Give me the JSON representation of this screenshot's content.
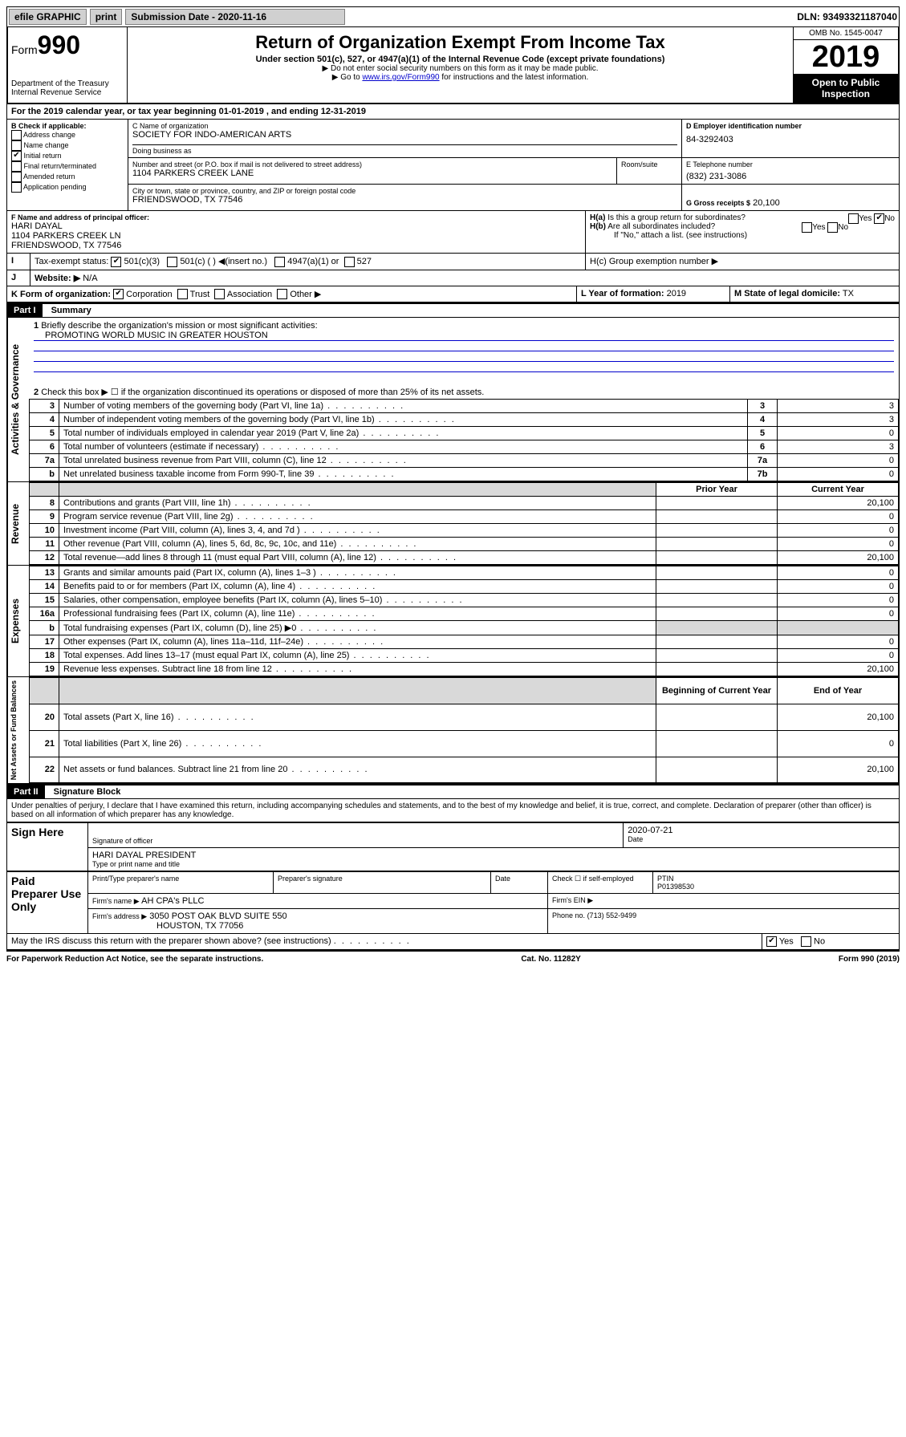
{
  "top_bar": {
    "efile": "efile GRAPHIC",
    "print": "print",
    "sub_label": "Submission Date - 2020-11-16",
    "dln": "DLN: 93493321187040"
  },
  "header": {
    "form_prefix": "Form",
    "form_number": "990",
    "dept1": "Department of the Treasury",
    "dept2": "Internal Revenue Service",
    "title": "Return of Organization Exempt From Income Tax",
    "subtitle": "Under section 501(c), 527, or 4947(a)(1) of the Internal Revenue Code (except private foundations)",
    "note1": "▶ Do not enter social security numbers on this form as it may be made public.",
    "note2_pre": "▶ Go to ",
    "note2_link": "www.irs.gov/Form990",
    "note2_post": " for instructions and the latest information.",
    "omb": "OMB No. 1545-0047",
    "year": "2019",
    "inspect1": "Open to Public",
    "inspect2": "Inspection"
  },
  "line_a": "For the 2019 calendar year, or tax year beginning 01-01-2019   , and ending 12-31-2019",
  "box_b": {
    "label": "B Check if applicable:",
    "items": [
      "Address change",
      "Name change",
      "Initial return",
      "Final return/terminated",
      "Amended return",
      "Application pending"
    ],
    "checked_idx": 2
  },
  "box_c": {
    "lbl_name": "C Name of organization",
    "name": "SOCIETY FOR INDO-AMERICAN ARTS",
    "dba_lbl": "Doing business as",
    "addr_lbl": "Number and street (or P.O. box if mail is not delivered to street address)",
    "room_lbl": "Room/suite",
    "addr": "1104 PARKERS CREEK LANE",
    "city_lbl": "City or town, state or province, country, and ZIP or foreign postal code",
    "city": "FRIENDSWOOD, TX  77546"
  },
  "box_d": {
    "lbl": "D Employer identification number",
    "val": "84-3292403"
  },
  "box_e": {
    "lbl": "E Telephone number",
    "val": "(832) 231-3086"
  },
  "box_g": {
    "lbl": "G Gross receipts $",
    "val": "20,100"
  },
  "box_f": {
    "lbl": "F  Name and address of principal officer:",
    "name": "HARI DAYAL",
    "addr1": "1104 PARKERS CREEK LN",
    "addr2": "FRIENDSWOOD, TX  77546"
  },
  "box_h": {
    "a": "H(a)  Is this a group return for subordinates?",
    "b": "H(b)  Are all subordinates included?",
    "note": "If \"No,\" attach a list. (see instructions)",
    "c": "H(c)  Group exemption number ▶",
    "yes": "Yes",
    "no": "No"
  },
  "box_i": {
    "lbl": "Tax-exempt status:",
    "o1": "501(c)(3)",
    "o2": "501(c) (  ) ◀(insert no.)",
    "o3": "4947(a)(1) or",
    "o4": "527"
  },
  "box_j": {
    "lbl": "Website: ▶",
    "val": "N/A"
  },
  "box_k": {
    "lbl": "K Form of organization:",
    "o1": "Corporation",
    "o2": "Trust",
    "o3": "Association",
    "o4": "Other ▶"
  },
  "box_l": {
    "lbl": "L Year of formation:",
    "val": "2019"
  },
  "box_m": {
    "lbl": "M State of legal domicile:",
    "val": "TX"
  },
  "part1": {
    "hdr": "Part I",
    "title": "Summary",
    "l1_lbl": "Briefly describe the organization's mission or most significant activities:",
    "l1_val": "PROMOTING WORLD MUSIC IN GREATER HOUSTON",
    "l2": "Check this box ▶ ☐  if the organization discontinued its operations or disposed of more than 25% of its net assets.",
    "rows_ag": [
      {
        "n": "3",
        "d": "Number of voting members of the governing body (Part VI, line 1a)",
        "b": "3",
        "v": "3"
      },
      {
        "n": "4",
        "d": "Number of independent voting members of the governing body (Part VI, line 1b)",
        "b": "4",
        "v": "3"
      },
      {
        "n": "5",
        "d": "Total number of individuals employed in calendar year 2019 (Part V, line 2a)",
        "b": "5",
        "v": "0"
      },
      {
        "n": "6",
        "d": "Total number of volunteers (estimate if necessary)",
        "b": "6",
        "v": "3"
      },
      {
        "n": "7a",
        "d": "Total unrelated business revenue from Part VIII, column (C), line 12",
        "b": "7a",
        "v": "0"
      },
      {
        "n": "b",
        "d": "Net unrelated business taxable income from Form 990-T, line 39",
        "b": "7b",
        "v": "0"
      }
    ],
    "col_prior": "Prior Year",
    "col_curr": "Current Year",
    "rows_rev": [
      {
        "n": "8",
        "d": "Contributions and grants (Part VIII, line 1h)",
        "p": "",
        "c": "20,100"
      },
      {
        "n": "9",
        "d": "Program service revenue (Part VIII, line 2g)",
        "p": "",
        "c": "0"
      },
      {
        "n": "10",
        "d": "Investment income (Part VIII, column (A), lines 3, 4, and 7d )",
        "p": "",
        "c": "0"
      },
      {
        "n": "11",
        "d": "Other revenue (Part VIII, column (A), lines 5, 6d, 8c, 9c, 10c, and 11e)",
        "p": "",
        "c": "0"
      },
      {
        "n": "12",
        "d": "Total revenue—add lines 8 through 11 (must equal Part VIII, column (A), line 12)",
        "p": "",
        "c": "20,100"
      }
    ],
    "rows_exp": [
      {
        "n": "13",
        "d": "Grants and similar amounts paid (Part IX, column (A), lines 1–3 )",
        "p": "",
        "c": "0"
      },
      {
        "n": "14",
        "d": "Benefits paid to or for members (Part IX, column (A), line 4)",
        "p": "",
        "c": "0"
      },
      {
        "n": "15",
        "d": "Salaries, other compensation, employee benefits (Part IX, column (A), lines 5–10)",
        "p": "",
        "c": "0"
      },
      {
        "n": "16a",
        "d": "Professional fundraising fees (Part IX, column (A), line 11e)",
        "p": "",
        "c": "0"
      },
      {
        "n": "b",
        "d": "Total fundraising expenses (Part IX, column (D), line 25) ▶0",
        "p": "shade",
        "c": "shade"
      },
      {
        "n": "17",
        "d": "Other expenses (Part IX, column (A), lines 11a–11d, 11f–24e)",
        "p": "",
        "c": "0"
      },
      {
        "n": "18",
        "d": "Total expenses. Add lines 13–17 (must equal Part IX, column (A), line 25)",
        "p": "",
        "c": "0"
      },
      {
        "n": "19",
        "d": "Revenue less expenses. Subtract line 18 from line 12",
        "p": "",
        "c": "20,100"
      }
    ],
    "col_boy": "Beginning of Current Year",
    "col_eoy": "End of Year",
    "rows_na": [
      {
        "n": "20",
        "d": "Total assets (Part X, line 16)",
        "p": "",
        "c": "20,100"
      },
      {
        "n": "21",
        "d": "Total liabilities (Part X, line 26)",
        "p": "",
        "c": "0"
      },
      {
        "n": "22",
        "d": "Net assets or fund balances. Subtract line 21 from line 20",
        "p": "",
        "c": "20,100"
      }
    ],
    "vert_ag": "Activities & Governance",
    "vert_rev": "Revenue",
    "vert_exp": "Expenses",
    "vert_na": "Net Assets or Fund Balances"
  },
  "part2": {
    "hdr": "Part II",
    "title": "Signature Block",
    "perjury": "Under penalties of perjury, I declare that I have examined this return, including accompanying schedules and statements, and to the best of my knowledge and belief, it is true, correct, and complete. Declaration of preparer (other than officer) is based on all information of which preparer has any knowledge.",
    "sign_here": "Sign Here",
    "sig_of_officer": "Signature of officer",
    "date": "Date",
    "date_val": "2020-07-21",
    "officer_name": "HARI DAYAL  PRESIDENT",
    "type_name": "Type or print name and title",
    "paid": "Paid Preparer Use Only",
    "prep_name_lbl": "Print/Type preparer's name",
    "prep_sig_lbl": "Preparer's signature",
    "check_self": "Check ☐ if self-employed",
    "ptin_lbl": "PTIN",
    "ptin": "P01398530",
    "firm_name_lbl": "Firm's name   ▶",
    "firm_name": "AH CPA's PLLC",
    "firm_ein": "Firm's EIN ▶",
    "firm_addr_lbl": "Firm's address ▶",
    "firm_addr": "3050 POST OAK BLVD SUITE 550",
    "firm_city": "HOUSTON, TX  77056",
    "phone_lbl": "Phone no.",
    "phone": "(713) 552-9499",
    "discuss": "May the IRS discuss this return with the preparer shown above? (see instructions)",
    "yes": "Yes",
    "no": "No"
  },
  "footer": {
    "left": "For Paperwork Reduction Act Notice, see the separate instructions.",
    "mid": "Cat. No. 11282Y",
    "right": "Form 990 (2019)"
  }
}
